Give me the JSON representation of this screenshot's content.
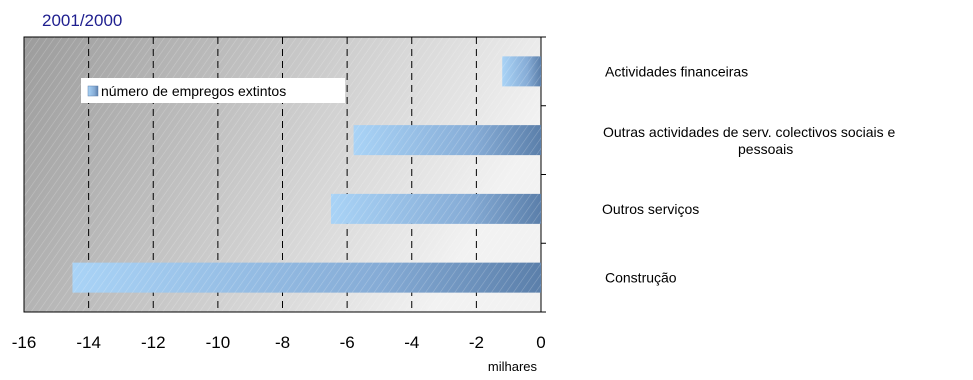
{
  "chart_data": {
    "type": "bar",
    "orientation": "horizontal",
    "title": "2001/2000",
    "categories": [
      "Construção",
      "Outros serviços",
      "Outras actividades de serv. colectivos sociais e pessoais",
      "Actividades financeiras"
    ],
    "category_label_lines": [
      [
        "Construção"
      ],
      [
        "Outros serviços"
      ],
      [
        "Outras actividades de serv. colectivos sociais e",
        "pessoais"
      ],
      [
        "Actividades financeiras"
      ]
    ],
    "series": [
      {
        "name": "número de empregos extintos",
        "values": [
          -14.5,
          -6.5,
          -5.8,
          -1.2
        ]
      }
    ],
    "x_ticks": [
      -16,
      -14,
      -12,
      -10,
      -8,
      -6,
      -4,
      -2,
      0
    ],
    "xlabel": "milhares",
    "ylabel": "",
    "xlim": [
      -16,
      0
    ],
    "grid": "vertical dashed",
    "legend_position": "top-left",
    "colors": {
      "title": "#1f1f8f",
      "plot_bg_light": "#f2f2f2",
      "plot_bg_dark": "#9c9c9c",
      "bar_light": "#a9d3f6",
      "bar_dark": "#5b7faa",
      "text": "#000000"
    }
  }
}
